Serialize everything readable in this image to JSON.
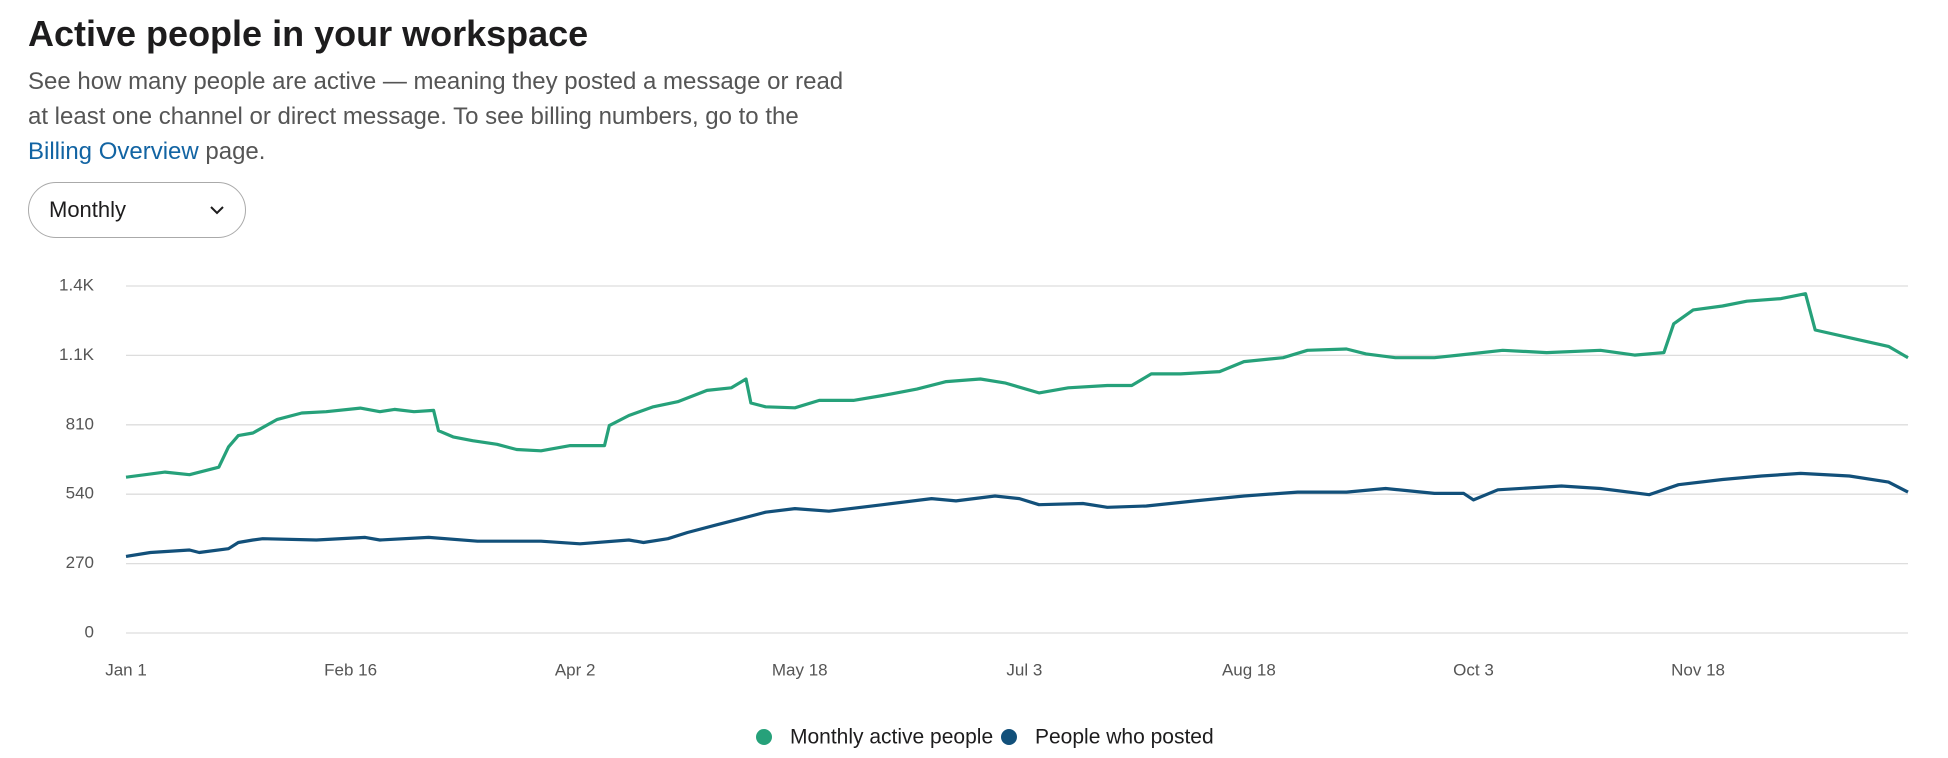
{
  "header": {
    "title": "Active people in your workspace",
    "description": "See how many people are active — meaning they posted a message or read at least one channel or direct message. To see billing numbers, go to the",
    "link": "Billing Overview",
    "description_end": "page.",
    "dropdown": "Monthly"
  },
  "chart_data": {
    "type": "line",
    "xlim": [
      0,
      365
    ],
    "xticks": [
      {
        "value": 0,
        "label": "Jan 1"
      },
      {
        "value": 46,
        "label": "Feb 16"
      },
      {
        "value": 92,
        "label": "Apr 2"
      },
      {
        "value": 138,
        "label": "May 18"
      },
      {
        "value": 184,
        "label": "Jul 3"
      },
      {
        "value": 230,
        "label": "Aug 18"
      },
      {
        "value": 276,
        "label": "Oct 3"
      },
      {
        "value": 322,
        "label": "Nov 18"
      }
    ],
    "ylim": [
      0,
      1350
    ],
    "yticks": [
      0,
      270,
      540,
      810,
      {
        "value": 1080,
        "label": "1.1K"
      },
      {
        "value": 1350,
        "label": "1.4K"
      }
    ],
    "grid": true,
    "legend": "bottom",
    "series": [
      {
        "name": "Monthly active people",
        "color": "#26a17a",
        "x": [
          0,
          8,
          13,
          19,
          21,
          23,
          26,
          31,
          36,
          41,
          48,
          52,
          55,
          59,
          63,
          64,
          67,
          71,
          76,
          80,
          85,
          91,
          98,
          99,
          103,
          108,
          113,
          119,
          124,
          127,
          128,
          131,
          137,
          142,
          149,
          155,
          162,
          168,
          175,
          180,
          187,
          193,
          201,
          206,
          210,
          216,
          224,
          229,
          237,
          242,
          250,
          254,
          260,
          268,
          273,
          282,
          291,
          302,
          309,
          315,
          317,
          321,
          327,
          332,
          339,
          344,
          346,
          353,
          361,
          365
        ],
        "values": [
          606,
          626,
          616,
          645,
          724,
          768,
          778,
          831,
          856,
          861,
          875,
          861,
          870,
          861,
          866,
          787,
          763,
          748,
          734,
          714,
          709,
          729,
          729,
          807,
          846,
          880,
          900,
          944,
          954,
          988,
          895,
          880,
          876,
          905,
          905,
          924,
          949,
          978,
          988,
          973,
          934,
          954,
          963,
          963,
          1008,
          1008,
          1017,
          1056,
          1071,
          1100,
          1105,
          1086,
          1071,
          1071,
          1081,
          1100,
          1091,
          1100,
          1081,
          1091,
          1203,
          1257,
          1272,
          1291,
          1301,
          1320,
          1179,
          1149,
          1115,
          1071
        ]
      },
      {
        "name": "People who posted",
        "color": "#12507a",
        "x": [
          0,
          5,
          13,
          15,
          21,
          23,
          26,
          28,
          39,
          49,
          52,
          62,
          72,
          85,
          93,
          103,
          106,
          111,
          115,
          121,
          126,
          131,
          137,
          144,
          155,
          165,
          170,
          178,
          183,
          187,
          196,
          201,
          209,
          219,
          229,
          240,
          250,
          258,
          268,
          274,
          276,
          281,
          294,
          302,
          312,
          318,
          327,
          335,
          343,
          353,
          361,
          365
        ],
        "values": [
          298,
          313,
          323,
          313,
          328,
          352,
          362,
          367,
          362,
          372,
          362,
          372,
          357,
          357,
          347,
          362,
          352,
          367,
          391,
          421,
          445,
          470,
          484,
          474,
          499,
          523,
          514,
          533,
          523,
          499,
          504,
          489,
          494,
          514,
          533,
          548,
          548,
          562,
          543,
          543,
          518,
          557,
          572,
          562,
          538,
          577,
          597,
          611,
          621,
          611,
          587,
          548
        ]
      }
    ]
  }
}
